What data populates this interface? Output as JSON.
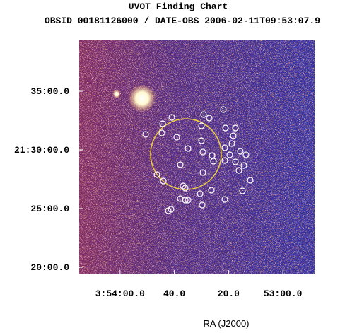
{
  "chart_data": {
    "type": "image",
    "title": "UVOT Finding Chart",
    "subtitle": "OBSID 00181126000 / DATE-OBS 2006-02-11T09:53:07.9",
    "x_label": "RA (J2000)",
    "xlim": [
      58.5628,
      58.2013
    ],
    "ylim": [
      21.3233,
      21.6556
    ],
    "xticks": [
      {
        "value": 58.5,
        "label": "3:54:00.0"
      },
      {
        "value": 58.41667,
        "label": "40.0"
      },
      {
        "value": 58.33333,
        "label": "20.0"
      },
      {
        "value": 58.25,
        "label": "53:00.0"
      }
    ],
    "yticks": [
      {
        "value": 21.58333,
        "label": "35:00.0"
      },
      {
        "value": 21.5,
        "label": "21:30:00.0"
      },
      {
        "value": 21.41667,
        "label": "25:00.0"
      },
      {
        "value": 21.33333,
        "label": "20:00.0"
      }
    ]
  }
}
